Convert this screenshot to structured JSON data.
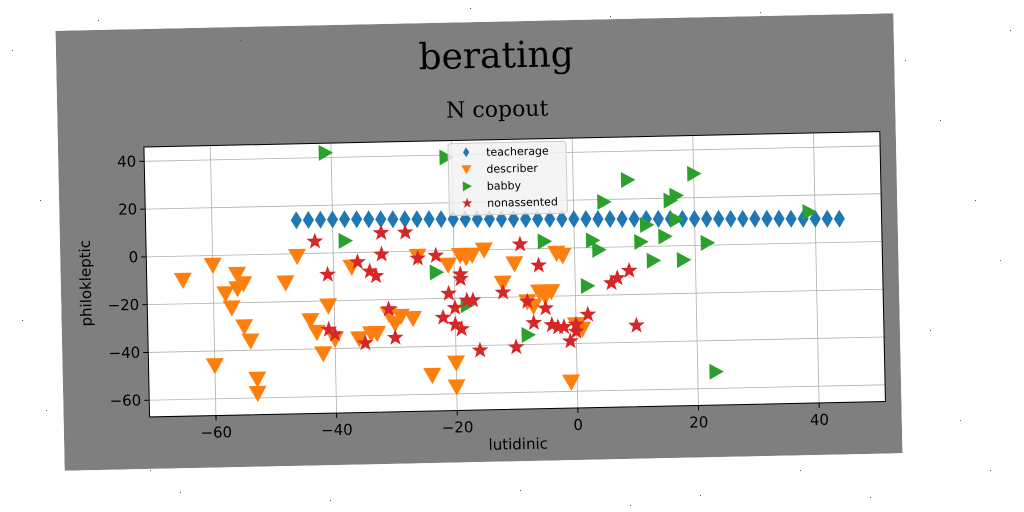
{
  "chart_data": {
    "type": "scatter",
    "title": "berating",
    "subtitle": "N copout",
    "xlabel": "lutidinic",
    "ylabel": "philokleptic",
    "xlim": [
      -71,
      51
    ],
    "ylim": [
      -67,
      46
    ],
    "xticks": [
      -60,
      -40,
      -20,
      0,
      20,
      40
    ],
    "yticks": [
      -60,
      -40,
      -20,
      0,
      20,
      40
    ],
    "xtick_labels": [
      "−60",
      "−40",
      "−20",
      "0",
      "20",
      "40"
    ],
    "ytick_labels": [
      "−60",
      "−40",
      "−20",
      "0",
      "20",
      "40"
    ],
    "grid": true,
    "legend_position": "top-center",
    "series": [
      {
        "name": "teacherage",
        "marker": "diamond",
        "color": "#1f77b4",
        "points": [
          [
            -46,
            14
          ],
          [
            -44,
            14
          ],
          [
            -42,
            14
          ],
          [
            -40,
            14
          ],
          [
            -38,
            14
          ],
          [
            -36,
            13.9
          ],
          [
            -34,
            13.8
          ],
          [
            -32,
            13.7
          ],
          [
            -30,
            13.6
          ],
          [
            -28,
            13.5
          ],
          [
            -26,
            13.4
          ],
          [
            -24,
            13.3
          ],
          [
            -22,
            13.2
          ],
          [
            -20,
            13.1
          ],
          [
            -18,
            13
          ],
          [
            -16,
            12.9
          ],
          [
            -14,
            12.8
          ],
          [
            -12,
            12.7
          ],
          [
            -10,
            12.6
          ],
          [
            -8,
            12.5
          ],
          [
            -6,
            12.4
          ],
          [
            -4,
            12.3
          ],
          [
            -2,
            12.2
          ],
          [
            0,
            12.1
          ],
          [
            2,
            12
          ],
          [
            4,
            11.9
          ],
          [
            6,
            11.8
          ],
          [
            8,
            11.7
          ],
          [
            10,
            11.6
          ],
          [
            12,
            11.5
          ],
          [
            14,
            11.4
          ],
          [
            16,
            11.3
          ],
          [
            18,
            11.2
          ],
          [
            20,
            11.1
          ],
          [
            22,
            11
          ],
          [
            24,
            10.9
          ],
          [
            26,
            10.8
          ],
          [
            28,
            10.7
          ],
          [
            30,
            10.6
          ],
          [
            32,
            10.5
          ],
          [
            34,
            10.4
          ],
          [
            36,
            10.3
          ],
          [
            38,
            10.2
          ],
          [
            40,
            10.1
          ],
          [
            42,
            10
          ],
          [
            44,
            9.9
          ]
        ]
      },
      {
        "name": "describer",
        "marker": "triangle-down",
        "color": "#ff7f0e",
        "points": [
          [
            -65,
            -10
          ],
          [
            -60,
            -4
          ],
          [
            -60,
            -46
          ],
          [
            -58,
            -16
          ],
          [
            -57,
            -22
          ],
          [
            -56,
            -8
          ],
          [
            -56,
            -14
          ],
          [
            -55,
            -30
          ],
          [
            -55,
            -12
          ],
          [
            -54,
            -36
          ],
          [
            -53,
            -52
          ],
          [
            -53,
            -58
          ],
          [
            -48,
            -12
          ],
          [
            -46,
            -1
          ],
          [
            -44,
            -28
          ],
          [
            -43,
            -33
          ],
          [
            -42,
            -42
          ],
          [
            -41,
            -22
          ],
          [
            -40,
            -36
          ],
          [
            -37,
            -6
          ],
          [
            -36,
            -36
          ],
          [
            -34,
            -34
          ],
          [
            -33,
            -34
          ],
          [
            -31,
            -26
          ],
          [
            -30,
            -30
          ],
          [
            -29,
            -27
          ],
          [
            -27,
            -28
          ],
          [
            -26,
            -2
          ],
          [
            -24,
            -52
          ],
          [
            -21,
            -6
          ],
          [
            -20,
            -47
          ],
          [
            -20,
            -57
          ],
          [
            -19,
            -2
          ],
          [
            -18,
            -3
          ],
          [
            -17,
            -2
          ],
          [
            -15,
            0
          ],
          [
            -12,
            -14
          ],
          [
            -10,
            -6
          ],
          [
            -8,
            -22
          ],
          [
            -7,
            -24
          ],
          [
            -6,
            -18
          ],
          [
            -5,
            -20
          ],
          [
            -4,
            -18
          ],
          [
            -3,
            -2
          ],
          [
            -2,
            -3
          ],
          [
            -1,
            -56
          ],
          [
            0,
            -32
          ],
          [
            1,
            -34
          ]
        ]
      },
      {
        "name": "babby",
        "marker": "triangle-right",
        "color": "#2ca02c",
        "points": [
          [
            -41,
            42
          ],
          [
            -38,
            5
          ],
          [
            -23,
            -9
          ],
          [
            -21,
            39
          ],
          [
            -18,
            -23
          ],
          [
            -8,
            -36
          ],
          [
            -5,
            3
          ],
          [
            2,
            -16
          ],
          [
            3,
            3
          ],
          [
            4,
            -1
          ],
          [
            5,
            19
          ],
          [
            9,
            28
          ],
          [
            11,
            2
          ],
          [
            12,
            9
          ],
          [
            13,
            -6
          ],
          [
            15,
            4
          ],
          [
            16,
            19
          ],
          [
            17,
            21
          ],
          [
            17,
            11
          ],
          [
            18,
            -6
          ],
          [
            20,
            30
          ],
          [
            22,
            1
          ],
          [
            23,
            -53
          ],
          [
            39,
            13
          ]
        ]
      },
      {
        "name": "nonassented",
        "marker": "star",
        "color": "#d62728",
        "points": [
          [
            -43,
            5
          ],
          [
            -41,
            -9
          ],
          [
            -41,
            -32
          ],
          [
            -40,
            -34
          ],
          [
            -36,
            -4
          ],
          [
            -35,
            -38
          ],
          [
            -34,
            -8
          ],
          [
            -33,
            -10
          ],
          [
            -32,
            -1
          ],
          [
            -32,
            8
          ],
          [
            -31,
            -24
          ],
          [
            -30,
            -36
          ],
          [
            -28,
            8
          ],
          [
            -26,
            -3
          ],
          [
            -23,
            -2
          ],
          [
            -22,
            -28
          ],
          [
            -21,
            -18
          ],
          [
            -20,
            -24
          ],
          [
            -20,
            -31
          ],
          [
            -19,
            -33
          ],
          [
            -19,
            -12
          ],
          [
            -19,
            -10
          ],
          [
            -18,
            -21
          ],
          [
            -17,
            -21
          ],
          [
            -16,
            -42
          ],
          [
            -12,
            -18
          ],
          [
            -10,
            -41
          ],
          [
            -9,
            2
          ],
          [
            -8,
            -22
          ],
          [
            -7,
            -31
          ],
          [
            -6,
            -7
          ],
          [
            -5,
            -25
          ],
          [
            -4,
            -32
          ],
          [
            -3,
            -33
          ],
          [
            -2,
            -33
          ],
          [
            -1,
            -39
          ],
          [
            0,
            -35
          ],
          [
            0,
            -32
          ],
          [
            2,
            -28
          ],
          [
            6,
            -15
          ],
          [
            7,
            -13
          ],
          [
            9,
            -10
          ],
          [
            10,
            -33
          ]
        ]
      }
    ]
  }
}
